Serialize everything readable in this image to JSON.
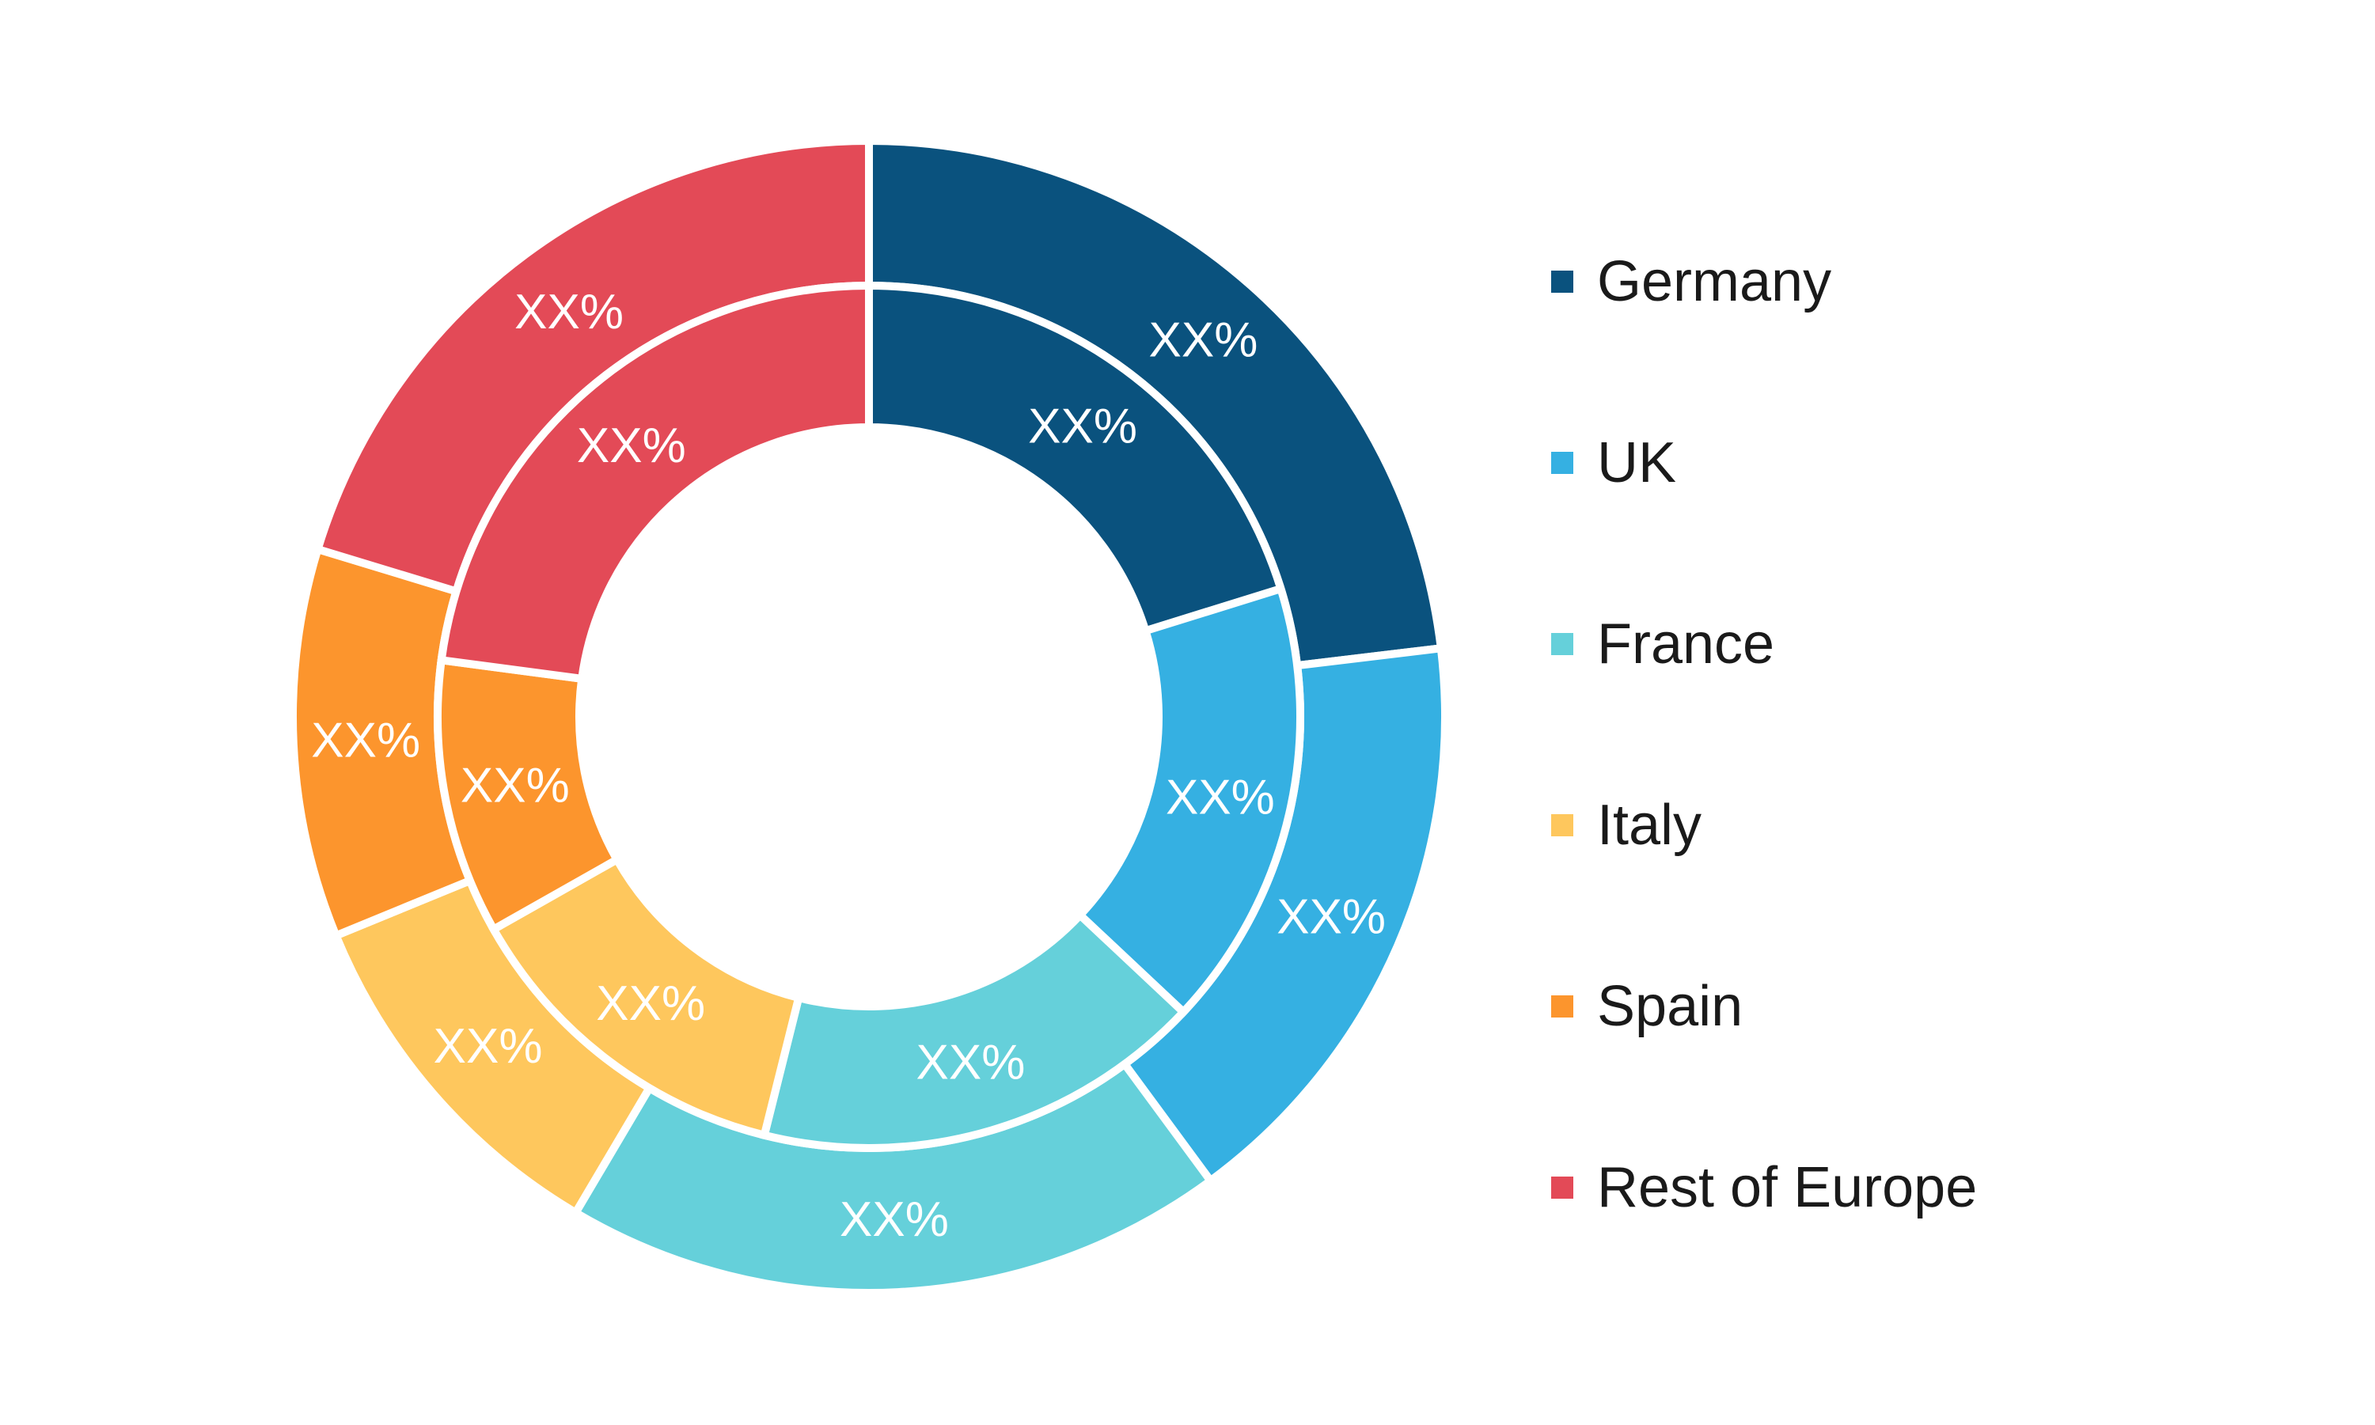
{
  "chart_data": {
    "type": "pie",
    "variant": "nested-donut",
    "title": "",
    "categories": [
      "Germany",
      "UK",
      "France",
      "Italy",
      "Spain",
      "Rest of Europe"
    ],
    "colors": [
      "#0a527e",
      "#35b0e2",
      "#65d0da",
      "#fec75d",
      "#fc952d",
      "#e34a57"
    ],
    "series": [
      {
        "ring": "outer",
        "values": [
          23.1,
          16.8,
          18.6,
          10.3,
          10.9,
          20.3
        ],
        "labels": [
          "XX%",
          "XX%",
          "XX%",
          "XX%",
          "XX%",
          "XX%"
        ]
      },
      {
        "ring": "inner",
        "values": [
          20.2,
          16.8,
          16.9,
          12.9,
          10.3,
          22.9
        ],
        "labels": [
          "XX%",
          "XX%",
          "XX%",
          "XX%",
          "XX%",
          "XX%"
        ]
      }
    ],
    "legend": {
      "placement": "right",
      "entries": [
        "Germany",
        "UK",
        "France",
        "Italy",
        "Spain",
        "Rest of Europe"
      ]
    }
  }
}
